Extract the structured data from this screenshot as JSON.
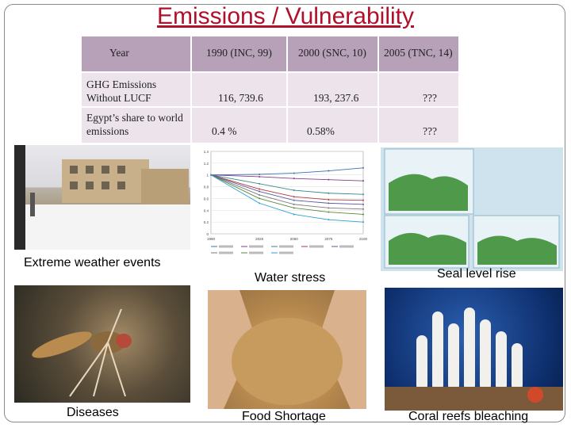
{
  "slide": {
    "title": "Emissions / Vulnerability"
  },
  "table": {
    "headers": [
      "Year",
      "1990 (INC, 99)",
      "2000 (SNC, 10)",
      "2005 (TNC, 14)"
    ],
    "rows": [
      {
        "label_line1": "GHG Emissions",
        "label_line2": "Without LUCF",
        "values": [
          "116, 739.6",
          "193, 237.6",
          "???"
        ]
      },
      {
        "label_line1": "Egypt’s share to world",
        "label_line2": "emissions",
        "values": [
          "0.4 %",
          "0.58%",
          "???"
        ]
      }
    ]
  },
  "captions": {
    "weather": "Extreme weather events",
    "water": "Water stress",
    "sea": "Seal level rise",
    "diseases": "Diseases",
    "food": "Food Shortage",
    "coral": "Coral reefs bleaching"
  },
  "colors": {
    "title": "#b0102a",
    "header_bg": "#b7a1b9",
    "row_bg": "#ece3eb"
  },
  "chart_data": {
    "type": "line",
    "x": [
      1990,
      2025,
      2050,
      2075,
      2100
    ],
    "ylim": [
      0,
      1.4
    ],
    "yticks": [
      0,
      0.2,
      0.4,
      0.6,
      0.8,
      1,
      1.2,
      1.4
    ],
    "series": [
      {
        "values": [
          1.0,
          1.01,
          1.03,
          1.07,
          1.12
        ],
        "color": "#3a6fb0"
      },
      {
        "values": [
          1.0,
          0.97,
          0.94,
          0.92,
          0.9
        ],
        "color": "#8a3a8a"
      },
      {
        "values": [
          1.0,
          0.85,
          0.74,
          0.69,
          0.67
        ],
        "color": "#3a8a8a"
      },
      {
        "values": [
          1.0,
          0.76,
          0.63,
          0.58,
          0.57
        ],
        "color": "#b03a3a"
      },
      {
        "values": [
          1.0,
          0.72,
          0.57,
          0.52,
          0.5
        ],
        "color": "#5a5aa0"
      },
      {
        "values": [
          1.0,
          0.66,
          0.5,
          0.44,
          0.42
        ],
        "color": "#7a7a7a"
      },
      {
        "values": [
          1.0,
          0.6,
          0.44,
          0.37,
          0.33
        ],
        "color": "#5a8a3a"
      },
      {
        "values": [
          1.0,
          0.52,
          0.33,
          0.24,
          0.2
        ],
        "color": "#2aa0d0"
      }
    ]
  }
}
